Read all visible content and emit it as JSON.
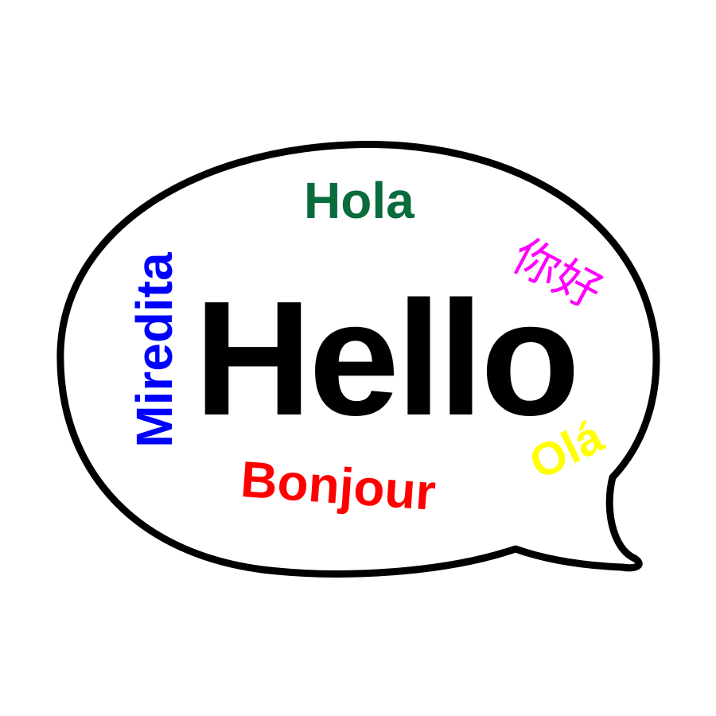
{
  "words": {
    "hello": "Hello",
    "hola": "Hola",
    "nihao": "你好",
    "miredita": "Miredita",
    "ola": "Olá",
    "bonjour": "Bonjour"
  },
  "colors": {
    "background": "#ffffff",
    "outline": "#000000",
    "hello": "#000000",
    "hola": "#0a6b3c",
    "nihao": "#ff00ff",
    "miredita": "#0000ff",
    "ola": "#ffff00",
    "bonjour": "#ff0000"
  }
}
